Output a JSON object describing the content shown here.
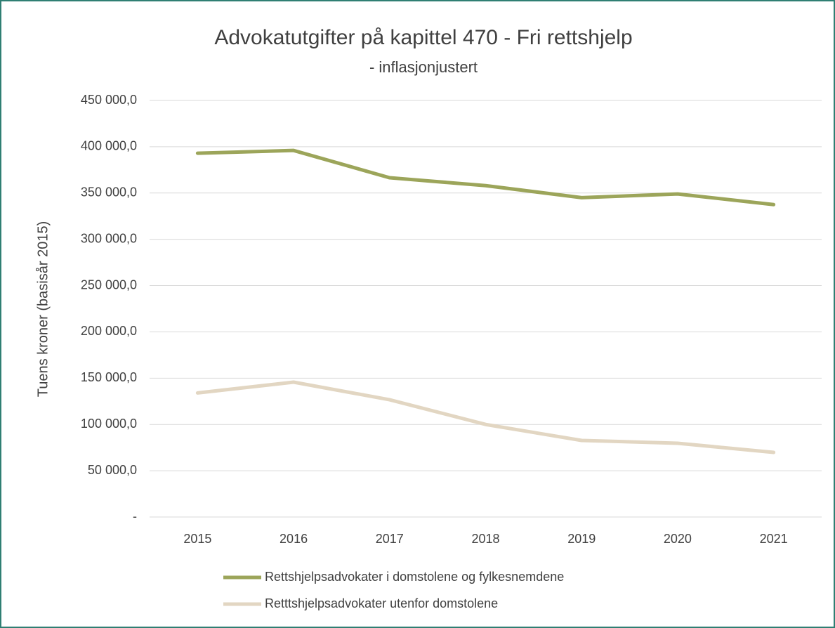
{
  "chart_data": {
    "type": "line",
    "title": "Advokatutgifter på kapittel 470 - Fri rettshjelp",
    "subtitle": "- inflasjonjustert",
    "y_label": "Tuens kroner (basisår 2015)",
    "categories": [
      "2015",
      "2016",
      "2017",
      "2018",
      "2019",
      "2020",
      "2021"
    ],
    "series": [
      {
        "name": "Rettshjelpsadvokater i domstolene og fylkesnemdene",
        "color": "#9ca55a",
        "values": [
          393000,
          396000,
          366500,
          358000,
          345000,
          349000,
          337500
        ]
      },
      {
        "name": "Retttshjelpsadvokater utenfor domstolene",
        "color": "#e2d6c2",
        "values": [
          134000,
          145700,
          126700,
          100000,
          82700,
          79700,
          69800
        ]
      }
    ],
    "ylim": [
      0,
      450000
    ],
    "yticks": [
      {
        "value": 0,
        "label": "-"
      },
      {
        "value": 50000,
        "label": "50 000,0"
      },
      {
        "value": 100000,
        "label": "100 000,0"
      },
      {
        "value": 150000,
        "label": "150 000,0"
      },
      {
        "value": 200000,
        "label": "200 000,0"
      },
      {
        "value": 250000,
        "label": "250 000,0"
      },
      {
        "value": 300000,
        "label": "300 000,0"
      },
      {
        "value": 350000,
        "label": "350 000,0"
      },
      {
        "value": 400000,
        "label": "400 000,0"
      },
      {
        "value": 450000,
        "label": "450 000,0"
      }
    ],
    "grid": true
  }
}
